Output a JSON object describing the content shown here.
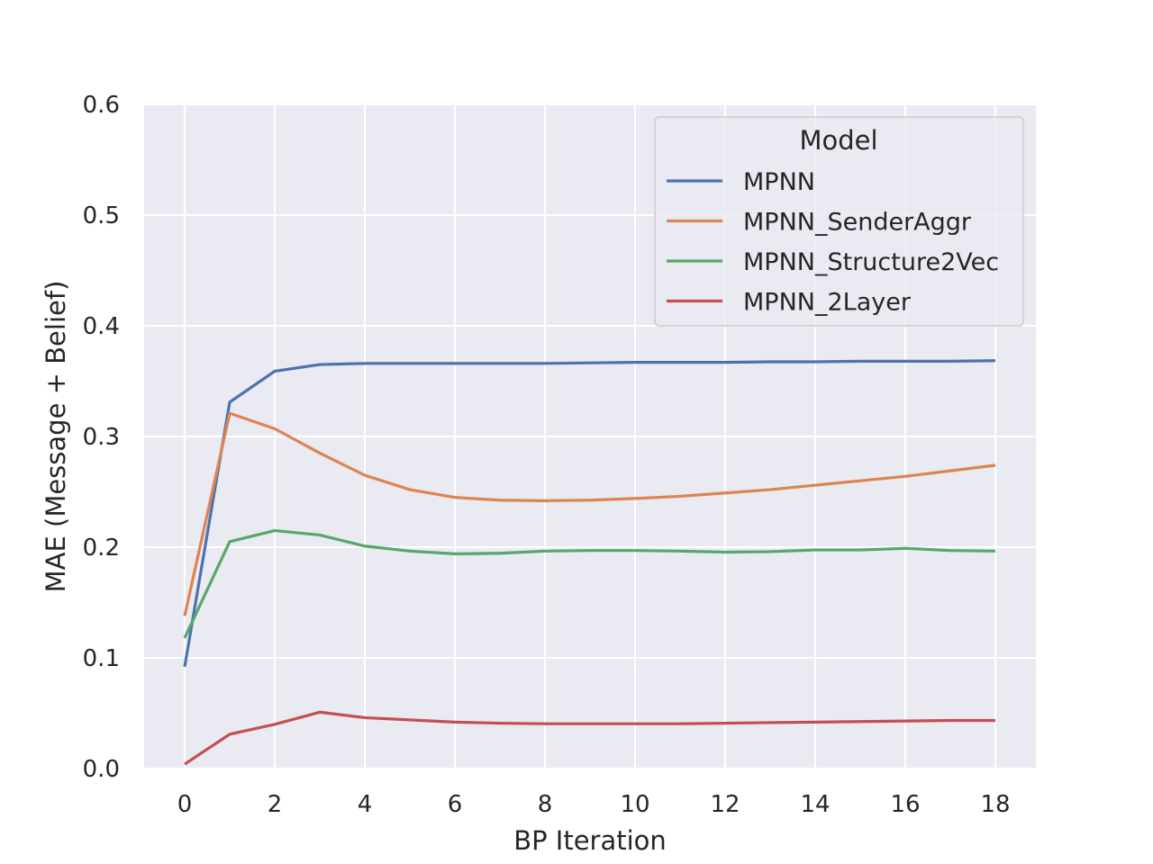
{
  "chart_data": {
    "type": "line",
    "title": "",
    "xlabel": "BP Iteration",
    "ylabel": "MAE (Message + Belief)",
    "xlim": [
      -0.9,
      18.9
    ],
    "ylim": [
      0.0,
      0.6
    ],
    "xticks": [
      0,
      2,
      4,
      6,
      8,
      10,
      12,
      14,
      16,
      18
    ],
    "yticks": [
      0.0,
      0.1,
      0.2,
      0.3,
      0.4,
      0.5,
      0.6
    ],
    "xtick_labels": [
      "0",
      "2",
      "4",
      "6",
      "8",
      "10",
      "12",
      "14",
      "16",
      "18"
    ],
    "ytick_labels": [
      "0.0",
      "0.1",
      "0.2",
      "0.3",
      "0.4",
      "0.5",
      "0.6"
    ],
    "grid": true,
    "legend": {
      "title": "Model",
      "position": "top-right"
    },
    "x": [
      0,
      1,
      2,
      3,
      4,
      5,
      6,
      7,
      8,
      9,
      10,
      11,
      12,
      13,
      14,
      15,
      16,
      17,
      18
    ],
    "series": [
      {
        "name": "MPNN",
        "color": "#4c72b0",
        "values": [
          0.092,
          0.331,
          0.359,
          0.365,
          0.366,
          0.366,
          0.366,
          0.366,
          0.366,
          0.3665,
          0.367,
          0.367,
          0.367,
          0.3675,
          0.3675,
          0.368,
          0.368,
          0.368,
          0.3685
        ]
      },
      {
        "name": "MPNN_SenderAggr",
        "color": "#dd8452",
        "values": [
          0.138,
          0.321,
          0.307,
          0.285,
          0.265,
          0.252,
          0.245,
          0.2425,
          0.242,
          0.2425,
          0.244,
          0.246,
          0.249,
          0.252,
          0.256,
          0.26,
          0.264,
          0.269,
          0.274
        ]
      },
      {
        "name": "MPNN_Structure2Vec",
        "color": "#55a868",
        "values": [
          0.118,
          0.205,
          0.215,
          0.211,
          0.201,
          0.1965,
          0.194,
          0.1945,
          0.1965,
          0.197,
          0.197,
          0.1965,
          0.1955,
          0.196,
          0.1975,
          0.1975,
          0.199,
          0.197,
          0.1965
        ]
      },
      {
        "name": "MPNN_2Layer",
        "color": "#c44e52",
        "values": [
          0.004,
          0.031,
          0.04,
          0.051,
          0.046,
          0.044,
          0.042,
          0.041,
          0.0405,
          0.0405,
          0.0405,
          0.0405,
          0.041,
          0.0415,
          0.042,
          0.0425,
          0.043,
          0.0435,
          0.0435
        ]
      }
    ]
  }
}
